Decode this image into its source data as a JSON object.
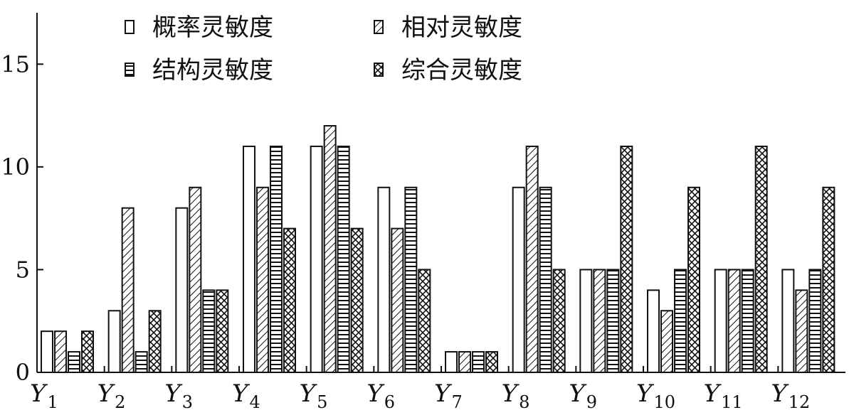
{
  "chart_data": {
    "type": "bar",
    "categories": [
      "Y1",
      "Y2",
      "Y3",
      "Y4",
      "Y5",
      "Y6",
      "Y7",
      "Y8",
      "Y9",
      "Y10",
      "Y11",
      "Y12"
    ],
    "category_labels": [
      {
        "main": "Y",
        "sub": "1"
      },
      {
        "main": "Y",
        "sub": "2"
      },
      {
        "main": "Y",
        "sub": "3"
      },
      {
        "main": "Y",
        "sub": "4"
      },
      {
        "main": "Y",
        "sub": "5"
      },
      {
        "main": "Y",
        "sub": "6"
      },
      {
        "main": "Y",
        "sub": "7"
      },
      {
        "main": "Y",
        "sub": "8"
      },
      {
        "main": "Y",
        "sub": "9"
      },
      {
        "main": "Y",
        "sub": "10"
      },
      {
        "main": "Y",
        "sub": "11"
      },
      {
        "main": "Y",
        "sub": "12"
      }
    ],
    "series": [
      {
        "name": "概率灵敏度",
        "pattern": "blank",
        "values": [
          2,
          3,
          8,
          11,
          11,
          9,
          1,
          9,
          5,
          4,
          5,
          5
        ]
      },
      {
        "name": "相对灵敏度",
        "pattern": "diagonal",
        "values": [
          2,
          8,
          9,
          9,
          12,
          7,
          1,
          11,
          5,
          3,
          5,
          4
        ]
      },
      {
        "name": "结构灵敏度",
        "pattern": "horizontal",
        "values": [
          1,
          1,
          4,
          11,
          11,
          9,
          1,
          9,
          5,
          5,
          5,
          5
        ]
      },
      {
        "name": "综合灵敏度",
        "pattern": "crosshatch",
        "values": [
          2,
          3,
          4,
          7,
          7,
          5,
          1,
          5,
          11,
          9,
          11,
          9
        ]
      }
    ],
    "yticks": [
      "0",
      "5",
      "10",
      "15"
    ],
    "ylim": [
      0,
      17.5
    ],
    "title": "",
    "xlabel": "",
    "ylabel": "",
    "legend_position": "top",
    "grid": false,
    "colors": {
      "bar_fill": "#ffffff",
      "stroke": "#111111"
    }
  }
}
